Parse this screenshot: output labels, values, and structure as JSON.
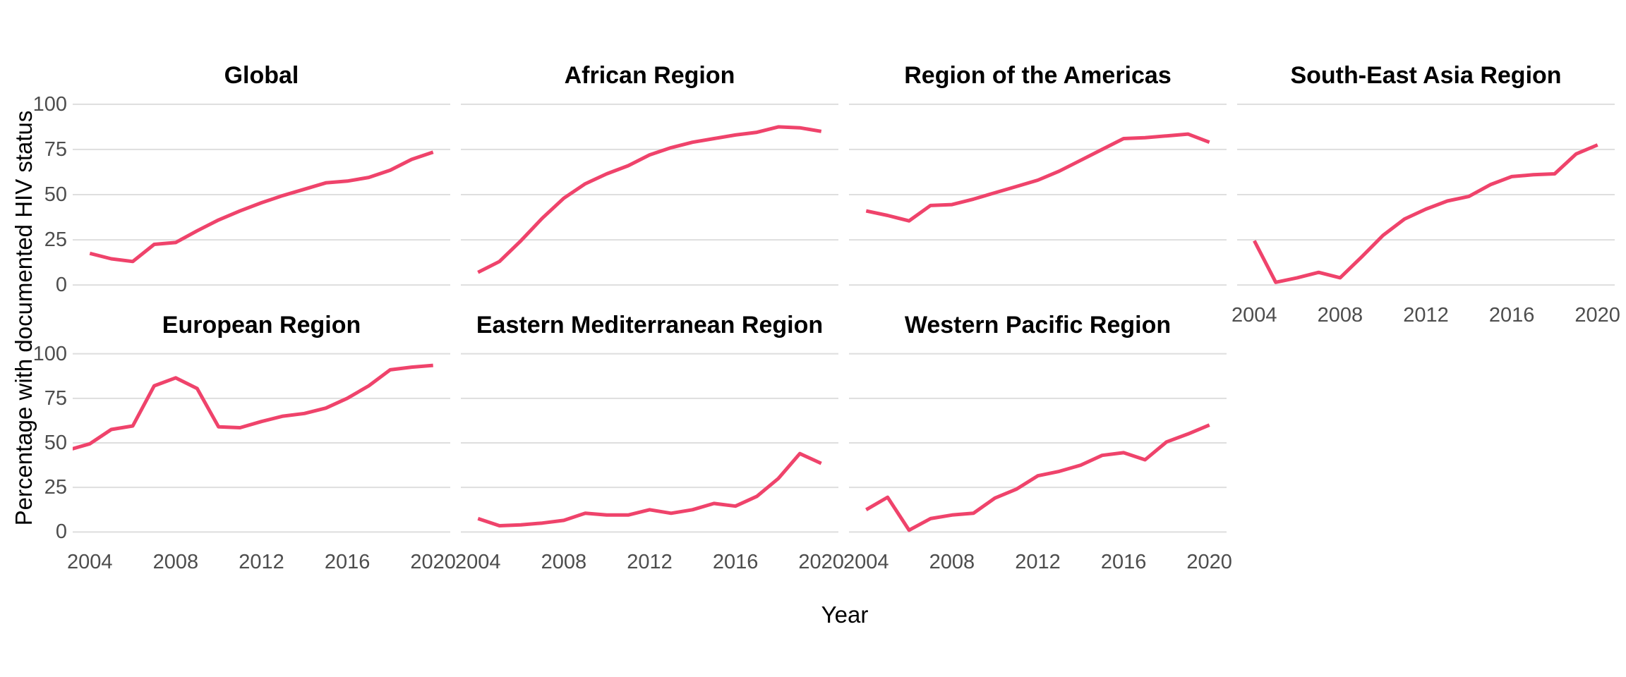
{
  "figure": {
    "y_axis_title": "Percentage with documented HIV status",
    "x_axis_title": "Year",
    "line_color": "#EF436B",
    "grid_color": "#DEDEDE",
    "tick_label_color": "#4D4D4D",
    "title_color": "#000000",
    "background_color": "#FFFFFF"
  },
  "axes": {
    "y_ticks": [
      100,
      75,
      50,
      25,
      0
    ],
    "x_ticks": [
      2004,
      2008,
      2012,
      2016,
      2020
    ],
    "ylim": [
      0,
      100
    ],
    "xlim": [
      2004,
      2020
    ]
  },
  "chart_data": [
    {
      "type": "line",
      "title": "Global",
      "row": 0,
      "col": 0,
      "show_x_axis": false,
      "show_y_axis": true,
      "x": [
        2004,
        2005,
        2006,
        2007,
        2008,
        2009,
        2010,
        2011,
        2012,
        2013,
        2014,
        2015,
        2016,
        2017,
        2018,
        2019,
        2020
      ],
      "y": [
        17.5,
        14.5,
        13,
        22.5,
        23.5,
        30,
        36,
        41,
        45.5,
        49.5,
        53,
        56.5,
        57.5,
        59.5,
        63.5,
        69.5,
        73.5
      ],
      "xlabel": "",
      "ylabel": "Percentage with documented HIV status",
      "ylim": [
        0,
        100
      ],
      "grid": "horizontal-major-only",
      "legend": "none"
    },
    {
      "type": "line",
      "title": "African Region",
      "row": 0,
      "col": 1,
      "show_x_axis": false,
      "show_y_axis": false,
      "x": [
        2004,
        2005,
        2006,
        2007,
        2008,
        2009,
        2010,
        2011,
        2012,
        2013,
        2014,
        2015,
        2016,
        2017,
        2018,
        2019,
        2020
      ],
      "y": [
        7,
        13,
        24.5,
        37,
        48,
        56,
        61.5,
        66,
        72,
        76,
        79,
        81,
        83,
        84.5,
        87.5,
        87,
        85
      ],
      "xlabel": "",
      "ylabel": "Percentage with documented HIV status",
      "ylim": [
        0,
        100
      ],
      "grid": "horizontal-major-only",
      "legend": "none"
    },
    {
      "type": "line",
      "title": "Region of the Americas",
      "row": 0,
      "col": 2,
      "show_x_axis": false,
      "show_y_axis": false,
      "x": [
        2004,
        2005,
        2006,
        2007,
        2008,
        2009,
        2010,
        2011,
        2012,
        2013,
        2014,
        2015,
        2016,
        2017,
        2018,
        2019,
        2020
      ],
      "y": [
        41,
        38.5,
        35.5,
        44,
        44.5,
        47.5,
        51,
        54.5,
        58,
        63,
        69,
        75,
        81,
        81.5,
        82.5,
        83.5,
        79
      ],
      "xlabel": "",
      "ylabel": "Percentage with documented HIV status",
      "ylim": [
        0,
        100
      ],
      "grid": "horizontal-major-only",
      "legend": "none"
    },
    {
      "type": "line",
      "title": "South-East Asia Region",
      "row": 0,
      "col": 3,
      "show_x_axis": true,
      "show_y_axis": false,
      "x": [
        2004,
        2005,
        2006,
        2007,
        2008,
        2009,
        2010,
        2011,
        2012,
        2013,
        2014,
        2015,
        2016,
        2017,
        2018,
        2019,
        2020
      ],
      "y": [
        24.5,
        1.5,
        4,
        7,
        4,
        15.5,
        27.5,
        36.5,
        42,
        46.5,
        49,
        55.5,
        60,
        61,
        61.5,
        72.5,
        77.5
      ],
      "xlabel": "Year",
      "ylabel": "Percentage with documented HIV status",
      "ylim": [
        0,
        100
      ],
      "grid": "horizontal-major-only",
      "legend": "none"
    },
    {
      "type": "line",
      "title": "European Region",
      "row": 1,
      "col": 0,
      "show_x_axis": true,
      "show_y_axis": true,
      "x": [
        2003,
        2004,
        2005,
        2006,
        2007,
        2008,
        2009,
        2010,
        2011,
        2012,
        2013,
        2014,
        2015,
        2016,
        2017,
        2018,
        2019,
        2020
      ],
      "y": [
        46,
        49.5,
        57.5,
        59.5,
        82,
        86.5,
        80.5,
        59,
        58.5,
        62,
        65,
        66.5,
        69.5,
        75,
        82,
        91,
        92.5,
        93.5
      ],
      "xlabel": "Year",
      "ylabel": "Percentage with documented HIV status",
      "ylim": [
        0,
        100
      ],
      "grid": "horizontal-major-only",
      "legend": "none",
      "note": "first point (2003) partially clipped at panel edge"
    },
    {
      "type": "line",
      "title": "Eastern Mediterranean Region",
      "row": 1,
      "col": 1,
      "show_x_axis": true,
      "show_y_axis": false,
      "x": [
        2004,
        2005,
        2006,
        2007,
        2008,
        2009,
        2010,
        2011,
        2012,
        2013,
        2014,
        2015,
        2016,
        2017,
        2018,
        2019,
        2020
      ],
      "y": [
        7.5,
        3.5,
        4,
        5,
        6.5,
        10.5,
        9.5,
        9.5,
        12.5,
        10.5,
        12.5,
        16,
        14.5,
        20,
        30,
        44,
        38.5
      ],
      "xlabel": "Year",
      "ylabel": "Percentage with documented HIV status",
      "ylim": [
        0,
        100
      ],
      "grid": "horizontal-major-only",
      "legend": "none"
    },
    {
      "type": "line",
      "title": "Western Pacific Region",
      "row": 1,
      "col": 2,
      "show_x_axis": true,
      "show_y_axis": false,
      "x": [
        2004,
        2005,
        2006,
        2007,
        2008,
        2009,
        2010,
        2011,
        2012,
        2013,
        2014,
        2015,
        2016,
        2017,
        2018,
        2019,
        2020
      ],
      "y": [
        12.5,
        19.5,
        1,
        7.5,
        9.5,
        10.5,
        19,
        24,
        31.5,
        34,
        37.5,
        43,
        44.5,
        40.5,
        50.5,
        55,
        60
      ],
      "xlabel": "Year",
      "ylabel": "Percentage with documented HIV status",
      "ylim": [
        0,
        100
      ],
      "grid": "horizontal-major-only",
      "legend": "none"
    }
  ]
}
